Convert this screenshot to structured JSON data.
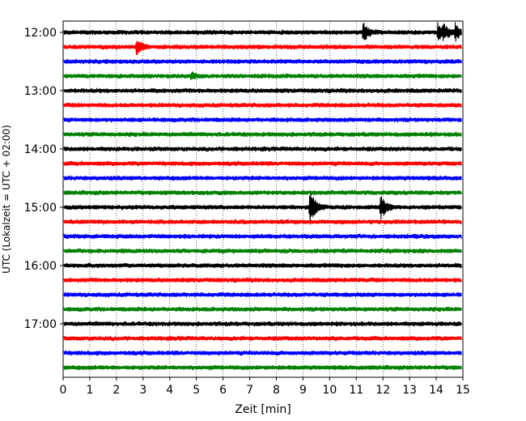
{
  "chart_data": {
    "type": "line",
    "title": "",
    "xlabel": "Zeit  [min]",
    "ylabel": "UTC (Lokalzeit = UTC + 02:00)",
    "xlim": [
      0,
      15
    ],
    "x_ticks": [
      "0",
      "1",
      "2",
      "3",
      "4",
      "5",
      "6",
      "7",
      "8",
      "9",
      "10",
      "11",
      "12",
      "13",
      "14",
      "15"
    ],
    "y_ticks": [
      "12:00",
      "13:00",
      "14:00",
      "15:00",
      "16:00",
      "17:00"
    ],
    "grid": "vertical dotted",
    "trace_interval_minutes": 15,
    "start_time": "12:00",
    "trace_colors": [
      "#000000",
      "#ff0000",
      "#0000ff",
      "#008000"
    ],
    "traces": [
      {
        "time": "12:00",
        "events": [
          {
            "x": 11.25,
            "amp": 14
          },
          {
            "x": 14.05,
            "amp": 12
          },
          {
            "x": 14.25,
            "amp": 9
          },
          {
            "x": 14.7,
            "amp": 10
          }
        ]
      },
      {
        "time": "12:15",
        "events": [
          {
            "x": 2.75,
            "amp": 10
          }
        ]
      },
      {
        "time": "12:30",
        "events": []
      },
      {
        "time": "12:45",
        "events": [
          {
            "x": 4.8,
            "amp": 4
          }
        ]
      },
      {
        "time": "13:00",
        "events": []
      },
      {
        "time": "13:15",
        "events": []
      },
      {
        "time": "13:30",
        "events": []
      },
      {
        "time": "13:45",
        "events": []
      },
      {
        "time": "14:00",
        "events": []
      },
      {
        "time": "14:15",
        "events": []
      },
      {
        "time": "14:30",
        "events": []
      },
      {
        "time": "14:45",
        "events": []
      },
      {
        "time": "15:00",
        "events": [
          {
            "x": 9.25,
            "amp": 24
          },
          {
            "x": 11.9,
            "amp": 16
          }
        ]
      },
      {
        "time": "15:15",
        "events": []
      },
      {
        "time": "15:30",
        "events": []
      },
      {
        "time": "15:45",
        "events": []
      },
      {
        "time": "16:00",
        "events": []
      },
      {
        "time": "16:15",
        "events": []
      },
      {
        "time": "16:30",
        "events": []
      },
      {
        "time": "16:45",
        "events": []
      },
      {
        "time": "17:00",
        "events": []
      },
      {
        "time": "17:15",
        "events": []
      },
      {
        "time": "17:30",
        "events": []
      },
      {
        "time": "17:45",
        "events": []
      }
    ]
  }
}
